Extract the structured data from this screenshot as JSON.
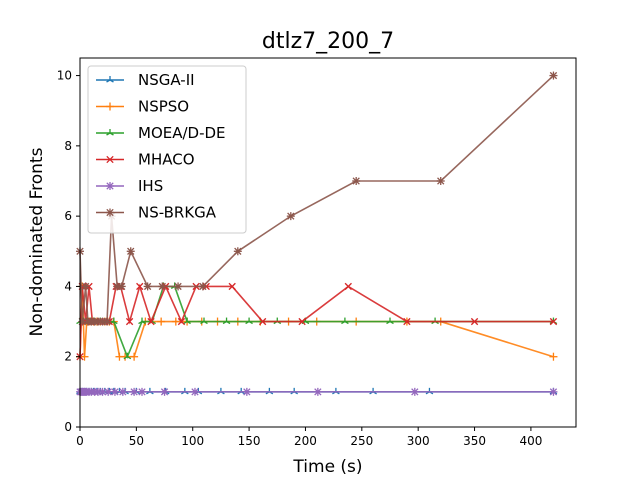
{
  "chart_data": {
    "type": "line",
    "title": "dtlz7_200_7",
    "xlabel": "Time (s)",
    "ylabel": "Non-dominated Fronts",
    "xlim": [
      0,
      440
    ],
    "ylim": [
      0,
      10.5
    ],
    "xticks": [
      0,
      50,
      100,
      150,
      200,
      250,
      300,
      350,
      400
    ],
    "yticks": [
      0,
      2,
      4,
      6,
      8,
      10
    ],
    "grid": false,
    "legend_position": "top-left",
    "series": [
      {
        "name": "NSGA-II",
        "color": "#1f77b4",
        "marker": "tri-star",
        "points": [
          [
            0,
            1
          ],
          [
            2,
            1
          ],
          [
            4,
            1
          ],
          [
            6,
            1
          ],
          [
            8,
            1
          ],
          [
            10,
            1
          ],
          [
            12,
            1
          ],
          [
            15,
            1
          ],
          [
            18,
            1
          ],
          [
            22,
            1
          ],
          [
            26,
            1
          ],
          [
            30,
            1
          ],
          [
            35,
            1
          ],
          [
            40,
            1
          ],
          [
            50,
            1
          ],
          [
            62,
            1
          ],
          [
            76,
            1
          ],
          [
            93,
            1
          ],
          [
            105,
            1
          ],
          [
            125,
            1
          ],
          [
            143,
            1
          ],
          [
            168,
            1
          ],
          [
            190,
            1
          ],
          [
            227,
            1
          ],
          [
            260,
            1
          ],
          [
            310,
            1
          ],
          [
            420,
            1
          ]
        ]
      },
      {
        "name": "NSPSO",
        "color": "#ff7f0e",
        "marker": "plus",
        "points": [
          [
            0,
            2
          ],
          [
            2,
            4
          ],
          [
            4,
            2
          ],
          [
            6,
            3
          ],
          [
            8,
            3
          ],
          [
            10,
            3
          ],
          [
            12,
            3
          ],
          [
            15,
            3
          ],
          [
            18,
            3
          ],
          [
            22,
            3
          ],
          [
            26,
            3
          ],
          [
            30,
            3
          ],
          [
            35,
            2
          ],
          [
            40,
            2
          ],
          [
            48,
            2
          ],
          [
            58,
            3
          ],
          [
            72,
            3
          ],
          [
            85,
            3
          ],
          [
            95,
            3
          ],
          [
            108,
            3
          ],
          [
            122,
            3
          ],
          [
            140,
            3
          ],
          [
            160,
            3
          ],
          [
            185,
            3
          ],
          [
            210,
            3
          ],
          [
            245,
            3
          ],
          [
            290,
            3
          ],
          [
            320,
            3
          ],
          [
            420,
            2
          ]
        ]
      },
      {
        "name": "MOEA/D-DE",
        "color": "#2ca02c",
        "marker": "tri-star",
        "points": [
          [
            0,
            3
          ],
          [
            3,
            3
          ],
          [
            6,
            3
          ],
          [
            9,
            3
          ],
          [
            12,
            3
          ],
          [
            18,
            3
          ],
          [
            24,
            3
          ],
          [
            30,
            3
          ],
          [
            42,
            2
          ],
          [
            55,
            3
          ],
          [
            64,
            3
          ],
          [
            74,
            4
          ],
          [
            84,
            4
          ],
          [
            95,
            3
          ],
          [
            110,
            3
          ],
          [
            130,
            3
          ],
          [
            150,
            3
          ],
          [
            175,
            3
          ],
          [
            200,
            3
          ],
          [
            235,
            3
          ],
          [
            275,
            3
          ],
          [
            315,
            3
          ],
          [
            420,
            3
          ]
        ]
      },
      {
        "name": "MHACO",
        "color": "#d62728",
        "marker": "x",
        "points": [
          [
            0,
            2
          ],
          [
            2,
            4
          ],
          [
            5,
            3
          ],
          [
            8,
            4
          ],
          [
            11,
            3
          ],
          [
            14,
            3
          ],
          [
            18,
            3
          ],
          [
            22,
            3
          ],
          [
            26,
            3
          ],
          [
            32,
            4
          ],
          [
            36,
            4
          ],
          [
            44,
            3
          ],
          [
            53,
            4
          ],
          [
            63,
            3
          ],
          [
            76,
            4
          ],
          [
            90,
            3
          ],
          [
            103,
            4
          ],
          [
            112,
            4
          ],
          [
            135,
            4
          ],
          [
            162,
            3
          ],
          [
            197,
            3
          ],
          [
            238,
            4
          ],
          [
            290,
            3
          ],
          [
            350,
            3
          ],
          [
            420,
            3
          ]
        ]
      },
      {
        "name": "IHS",
        "color": "#9467bd",
        "marker": "asterisk",
        "points": [
          [
            0,
            1
          ],
          [
            1,
            1
          ],
          [
            2,
            1
          ],
          [
            3,
            1
          ],
          [
            4,
            1
          ],
          [
            5,
            1
          ],
          [
            6,
            1
          ],
          [
            8,
            1
          ],
          [
            10,
            1
          ],
          [
            13,
            1
          ],
          [
            16,
            1
          ],
          [
            20,
            1
          ],
          [
            25,
            1
          ],
          [
            31,
            1
          ],
          [
            38,
            1
          ],
          [
            48,
            1
          ],
          [
            55,
            1
          ],
          [
            75,
            1
          ],
          [
            102,
            1
          ],
          [
            148,
            1
          ],
          [
            211,
            1
          ],
          [
            297,
            1
          ],
          [
            420,
            1
          ]
        ]
      },
      {
        "name": "NS-BRKGA",
        "color": "#8c564b",
        "marker": "asterisk",
        "points": [
          [
            0,
            5
          ],
          [
            2,
            3
          ],
          [
            5,
            4
          ],
          [
            7,
            3
          ],
          [
            10,
            3
          ],
          [
            13,
            3
          ],
          [
            16,
            3
          ],
          [
            20,
            3
          ],
          [
            24,
            3
          ],
          [
            28,
            6
          ],
          [
            33,
            4
          ],
          [
            37,
            4
          ],
          [
            45,
            5
          ],
          [
            60,
            4
          ],
          [
            73,
            4
          ],
          [
            87,
            4
          ],
          [
            109,
            4
          ],
          [
            140,
            5
          ],
          [
            187,
            6
          ],
          [
            245,
            7
          ],
          [
            320,
            7
          ],
          [
            420,
            10
          ]
        ]
      }
    ]
  }
}
